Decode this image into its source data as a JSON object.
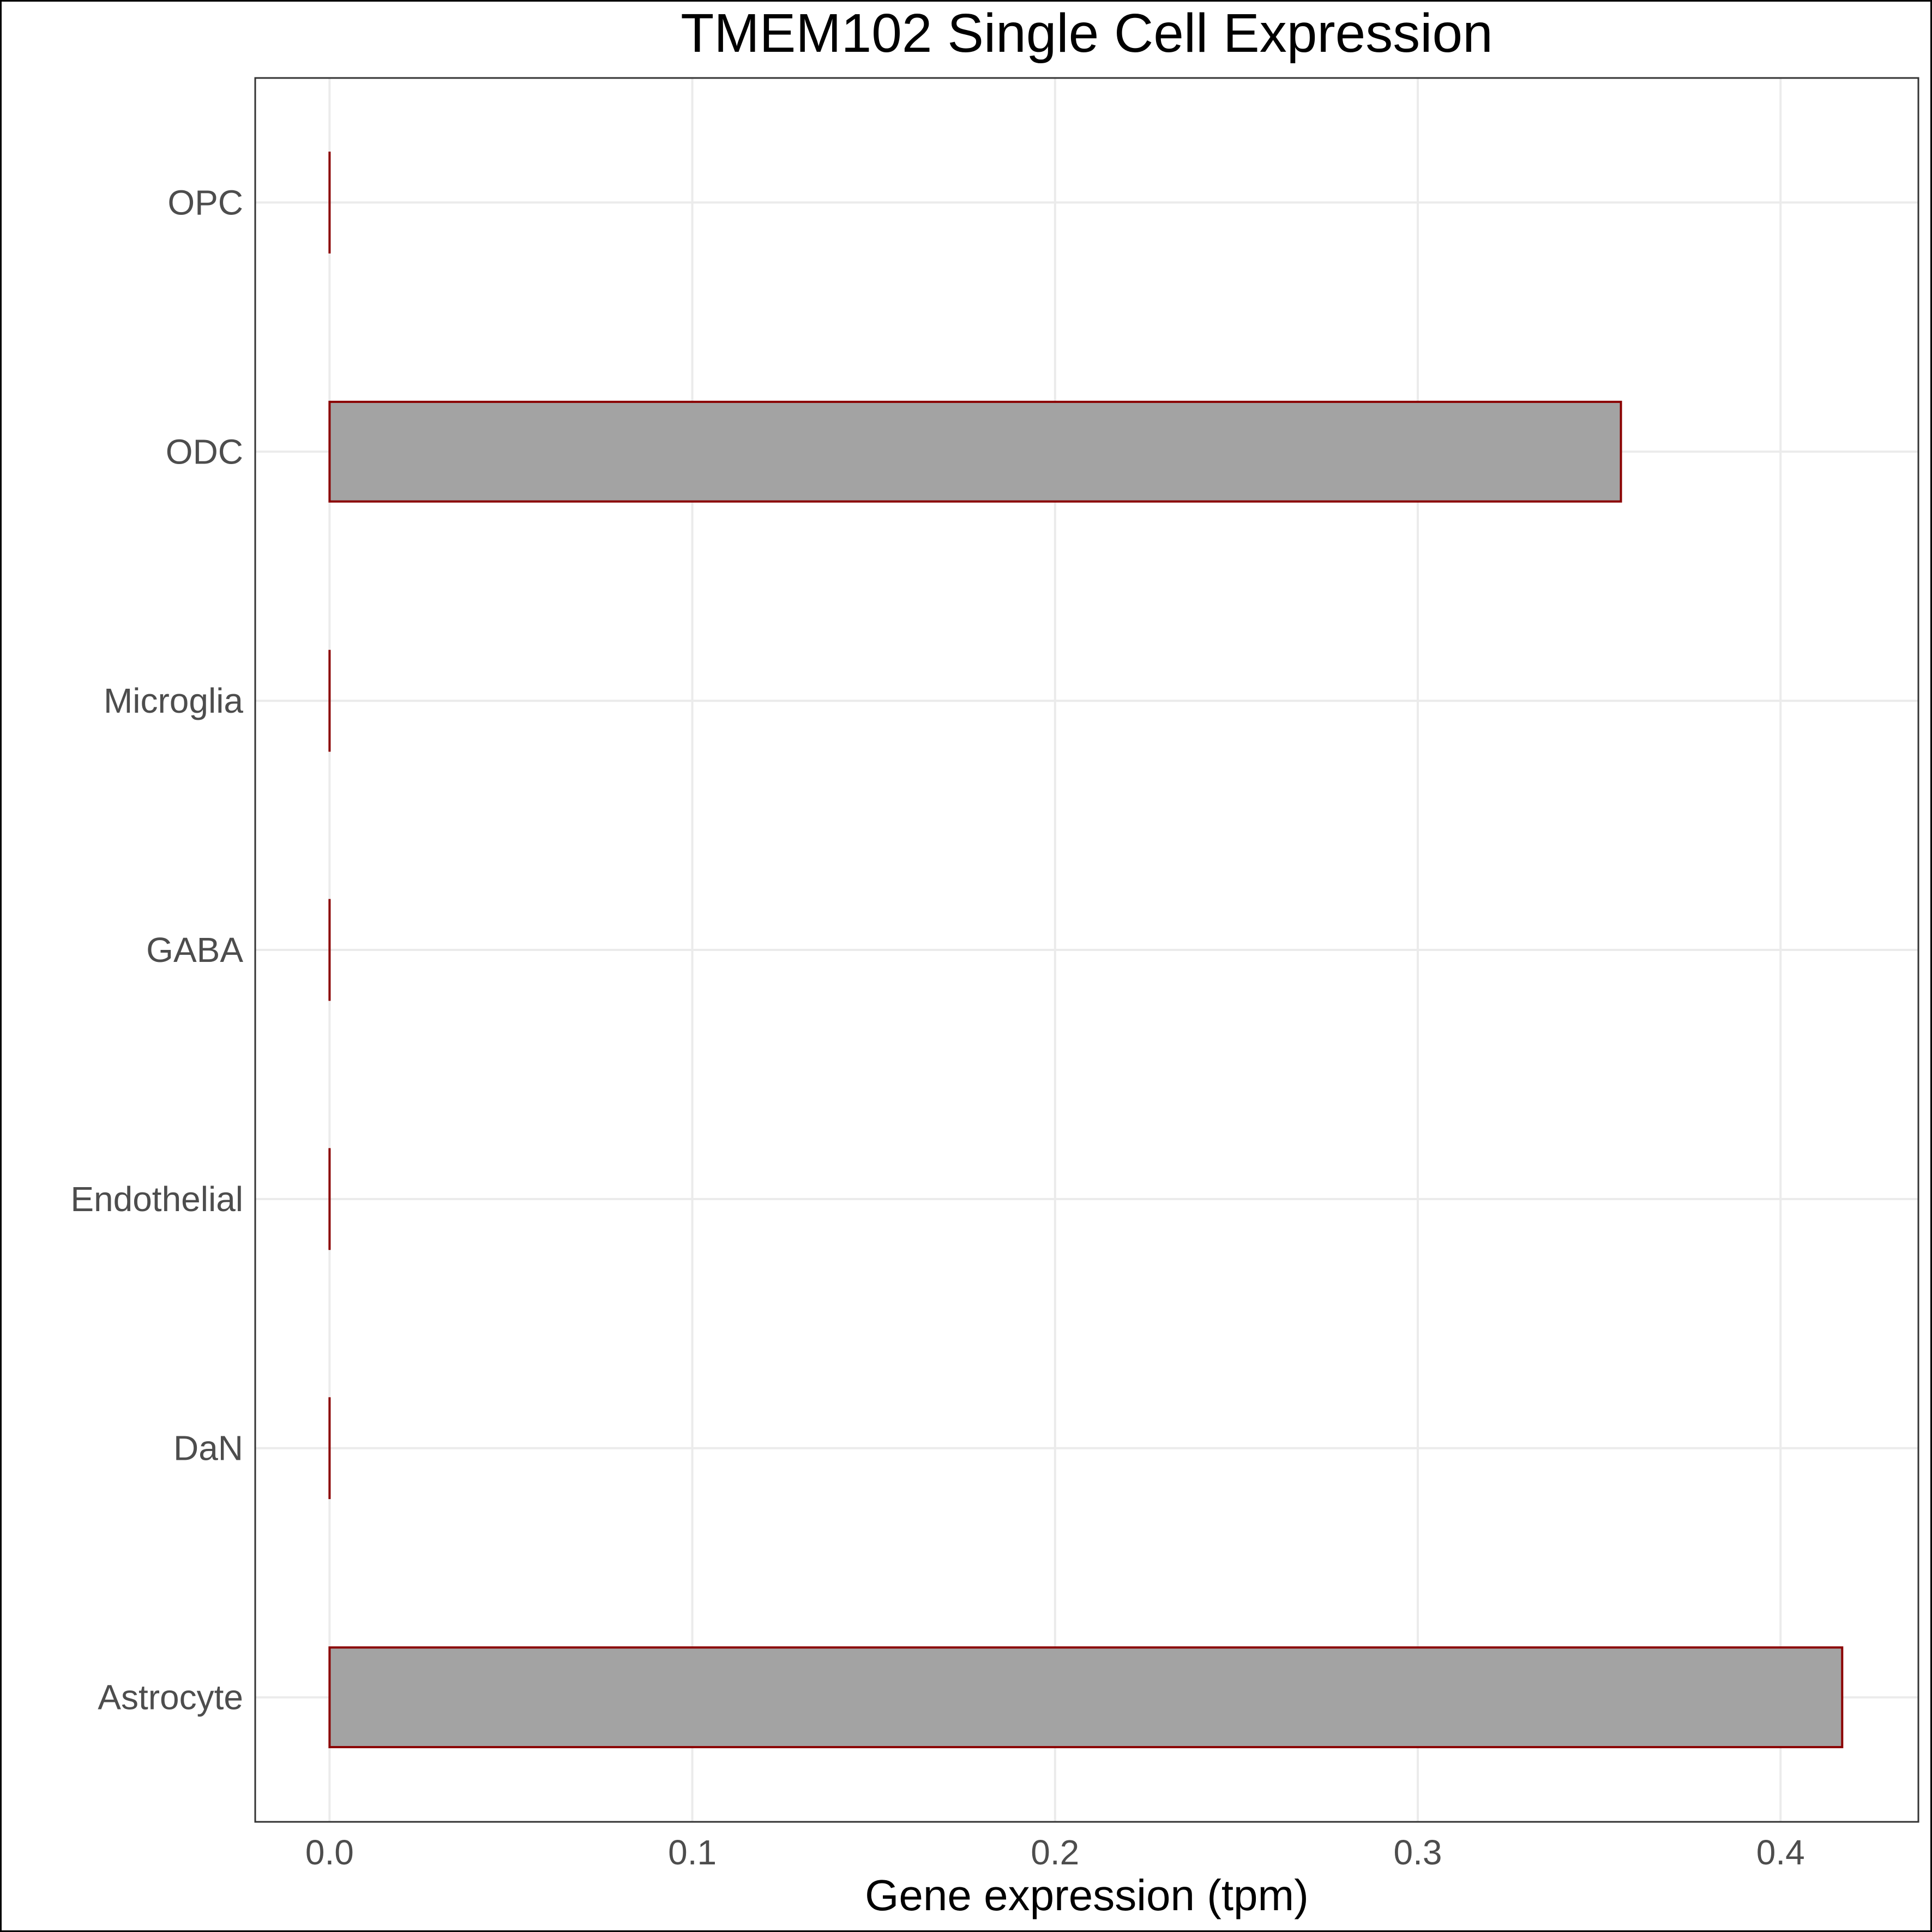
{
  "chart_data": {
    "type": "bar",
    "orientation": "horizontal",
    "title": "TMEM102 Single Cell Expression",
    "xlabel": "Gene expression (tpm)",
    "ylabel": "",
    "categories": [
      "Astrocyte",
      "DaN",
      "Endothelial",
      "GABA",
      "Microglia",
      "ODC",
      "OPC"
    ],
    "values": [
      0.417,
      0,
      0,
      0,
      0,
      0.356,
      0
    ],
    "xlim": [
      -0.0205,
      0.438
    ],
    "xticks": [
      0.0,
      0.1,
      0.2,
      0.3,
      0.4
    ],
    "xtick_labels": [
      "0.0",
      "0.1",
      "0.2",
      "0.3",
      "0.4"
    ],
    "grid": true,
    "bar_fill": "#a3a3a3",
    "bar_outline": "#8b0000"
  }
}
